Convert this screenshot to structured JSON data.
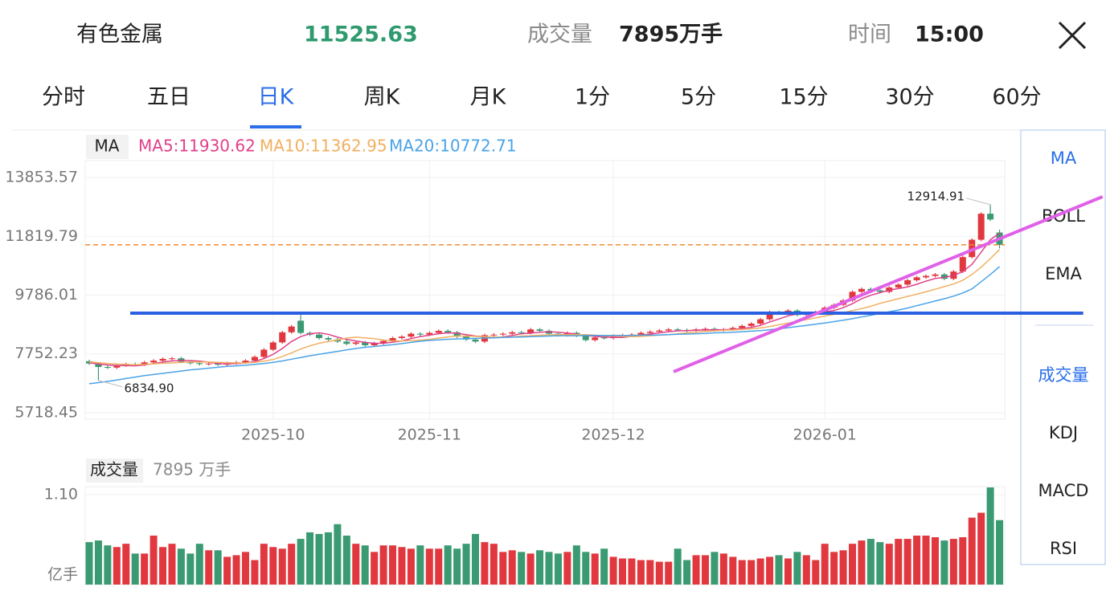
{
  "header": {
    "name": "有色金属",
    "price": "11525.63",
    "volume_label": "成交量",
    "volume": "7895万手",
    "time_label": "时间",
    "time": "15:00"
  },
  "tabs": [
    "分时",
    "五日",
    "日K",
    "周K",
    "月K",
    "1分",
    "5分",
    "15分",
    "30分",
    "60分"
  ],
  "active_tab": 2,
  "indicators": {
    "main": [
      "MA",
      "BOLL",
      "EMA"
    ],
    "sub": [
      "成交量",
      "KDJ",
      "MACD",
      "RSI"
    ]
  },
  "chart_data": {
    "type": "candlestick",
    "indicator": "MA",
    "grid": true,
    "up_color": "#e0383e",
    "down_color": "#3a9a72",
    "ylim": [
      5496.3,
      14436.7
    ],
    "yticks": [
      13853.57,
      11819.79,
      9786.01,
      7752.23,
      5718.45
    ],
    "xticks": [
      {
        "value": 20,
        "label": "2025-10"
      },
      {
        "value": 37,
        "label": "2025-11"
      },
      {
        "value": 57,
        "label": "2025-12"
      },
      {
        "value": 80,
        "label": "2026-01"
      }
    ],
    "high_label": "12914.91",
    "low_label": "6834.90",
    "ohlc": [
      [
        7500,
        7550,
        7370,
        7420
      ],
      [
        7420,
        7470,
        6834.9,
        7300
      ],
      [
        7300,
        7350,
        7230,
        7280
      ],
      [
        7280,
        7400,
        7230,
        7350
      ],
      [
        7350,
        7450,
        7300,
        7400
      ],
      [
        7400,
        7450,
        7330,
        7380
      ],
      [
        7380,
        7510,
        7330,
        7460
      ],
      [
        7460,
        7570,
        7410,
        7520
      ],
      [
        7520,
        7630,
        7470,
        7580
      ],
      [
        7580,
        7650,
        7530,
        7600
      ],
      [
        7600,
        7650,
        7430,
        7480
      ],
      [
        7480,
        7530,
        7380,
        7430
      ],
      [
        7430,
        7480,
        7350,
        7400
      ],
      [
        7400,
        7470,
        7350,
        7420
      ],
      [
        7420,
        7470,
        7330,
        7380
      ],
      [
        7380,
        7480,
        7330,
        7430
      ],
      [
        7430,
        7510,
        7380,
        7460
      ],
      [
        7460,
        7570,
        7410,
        7520
      ],
      [
        7520,
        7700,
        7470,
        7650
      ],
      [
        7650,
        7950,
        7600,
        7900
      ],
      [
        7900,
        8200,
        7850,
        8150
      ],
      [
        8150,
        8550,
        8100,
        8500
      ],
      [
        8500,
        8750,
        8450,
        8700
      ],
      [
        8900,
        9100,
        8430,
        8480
      ],
      [
        8480,
        8530,
        8370,
        8420
      ],
      [
        8420,
        8470,
        8250,
        8300
      ],
      [
        8300,
        8350,
        8200,
        8250
      ],
      [
        8250,
        8300,
        8130,
        8180
      ],
      [
        8180,
        8230,
        8050,
        8100
      ],
      [
        8100,
        8200,
        8050,
        8150
      ],
      [
        8150,
        8200,
        8000,
        8050
      ],
      [
        8050,
        8170,
        8000,
        8120
      ],
      [
        8120,
        8250,
        8070,
        8200
      ],
      [
        8200,
        8350,
        8150,
        8300
      ],
      [
        8300,
        8400,
        8250,
        8350
      ],
      [
        8350,
        8500,
        8300,
        8450
      ],
      [
        8450,
        8500,
        8370,
        8420
      ],
      [
        8420,
        8530,
        8370,
        8480
      ],
      [
        8480,
        8600,
        8430,
        8550
      ],
      [
        8550,
        8600,
        8450,
        8500
      ],
      [
        8500,
        8550,
        8300,
        8350
      ],
      [
        8350,
        8400,
        8200,
        8250
      ],
      [
        8250,
        8300,
        8130,
        8180
      ],
      [
        8180,
        8450,
        8130,
        8400
      ],
      [
        8400,
        8470,
        8350,
        8420
      ],
      [
        8420,
        8500,
        8370,
        8450
      ],
      [
        8450,
        8550,
        8400,
        8500
      ],
      [
        8500,
        8550,
        8430,
        8480
      ],
      [
        8480,
        8650,
        8430,
        8600
      ],
      [
        8600,
        8650,
        8500,
        8550
      ],
      [
        8550,
        8600,
        8400,
        8450
      ],
      [
        8450,
        8500,
        8350,
        8400
      ],
      [
        8400,
        8530,
        8350,
        8480
      ],
      [
        8480,
        8530,
        8330,
        8380
      ],
      [
        8380,
        8430,
        8180,
        8230
      ],
      [
        8230,
        8370,
        8180,
        8320
      ],
      [
        8320,
        8370,
        8250,
        8300
      ],
      [
        8300,
        8430,
        8250,
        8380
      ],
      [
        8380,
        8450,
        8330,
        8400
      ],
      [
        8400,
        8470,
        8350,
        8420
      ],
      [
        8420,
        8530,
        8370,
        8480
      ],
      [
        8480,
        8570,
        8430,
        8520
      ],
      [
        8520,
        8610,
        8470,
        8560
      ],
      [
        8560,
        8650,
        8510,
        8600
      ],
      [
        8600,
        8650,
        8530,
        8580
      ],
      [
        8580,
        8630,
        8500,
        8550
      ],
      [
        8550,
        8650,
        8500,
        8600
      ],
      [
        8600,
        8670,
        8550,
        8620
      ],
      [
        8620,
        8670,
        8530,
        8580
      ],
      [
        8580,
        8650,
        8530,
        8600
      ],
      [
        8600,
        8700,
        8550,
        8650
      ],
      [
        8650,
        8770,
        8600,
        8720
      ],
      [
        8720,
        8850,
        8670,
        8800
      ],
      [
        8800,
        9000,
        8750,
        8950
      ],
      [
        8950,
        9250,
        8900,
        9200
      ],
      [
        9200,
        9250,
        9100,
        9150
      ],
      [
        9150,
        9300,
        9100,
        9250
      ],
      [
        9250,
        9300,
        9050,
        9100
      ],
      [
        9100,
        9200,
        9050,
        9150
      ],
      [
        9150,
        9250,
        9100,
        9200
      ],
      [
        9200,
        9400,
        9150,
        9350
      ],
      [
        9350,
        9500,
        9300,
        9450
      ],
      [
        9450,
        9650,
        9400,
        9600
      ],
      [
        9600,
        9950,
        9550,
        9900
      ],
      [
        9900,
        10050,
        9850,
        10000
      ],
      [
        10000,
        10050,
        9900,
        9950
      ],
      [
        9950,
        10000,
        9850,
        9900
      ],
      [
        9900,
        10100,
        9850,
        10050
      ],
      [
        10050,
        10200,
        10000,
        10150
      ],
      [
        10150,
        10350,
        10100,
        10300
      ],
      [
        10300,
        10450,
        10250,
        10400
      ],
      [
        10400,
        10500,
        10350,
        10450
      ],
      [
        10450,
        10550,
        10400,
        10500
      ],
      [
        10500,
        10550,
        10300,
        10350
      ],
      [
        10350,
        10650,
        10300,
        10600
      ],
      [
        10600,
        11150,
        10550,
        11100
      ],
      [
        11100,
        11750,
        11050,
        11700
      ],
      [
        11700,
        12650,
        11650,
        12600
      ],
      [
        12600,
        12914.91,
        12350,
        12400
      ],
      [
        11950,
        12050,
        11400,
        11525.63
      ]
    ],
    "series": [
      {
        "name": "MA5:11930.62",
        "color": "#e0408a",
        "values": [
          7450,
          7400,
          7370,
          7350,
          7350,
          7340,
          7370,
          7420,
          7470,
          7510,
          7530,
          7520,
          7500,
          7470,
          7420,
          7410,
          7420,
          7440,
          7490,
          7590,
          7740,
          7940,
          8180,
          8350,
          8450,
          8480,
          8430,
          8330,
          8250,
          8200,
          8150,
          8120,
          8120,
          8160,
          8200,
          8280,
          8350,
          8400,
          8450,
          8480,
          8470,
          8420,
          8370,
          8350,
          8320,
          8340,
          8390,
          8450,
          8470,
          8500,
          8520,
          8500,
          8470,
          8440,
          8390,
          8360,
          8340,
          8320,
          8320,
          8360,
          8400,
          8440,
          8480,
          8520,
          8550,
          8560,
          8570,
          8580,
          8590,
          8590,
          8600,
          8630,
          8670,
          8740,
          8860,
          8960,
          9070,
          9130,
          9170,
          9170,
          9210,
          9250,
          9350,
          9490,
          9660,
          9780,
          9870,
          9960,
          10010,
          10070,
          10160,
          10270,
          10360,
          10400,
          10460,
          10600,
          10850,
          11270,
          11700,
          11930.62
        ]
      },
      {
        "name": "MA10:11362.95",
        "color": "#f0b060",
        "values": [
          7480,
          7450,
          7420,
          7400,
          7390,
          7380,
          7390,
          7410,
          7430,
          7440,
          7460,
          7470,
          7470,
          7470,
          7460,
          7450,
          7440,
          7440,
          7460,
          7500,
          7560,
          7660,
          7790,
          7920,
          8030,
          8120,
          8180,
          8230,
          8300,
          8330,
          8310,
          8280,
          8230,
          8200,
          8200,
          8210,
          8230,
          8250,
          8300,
          8340,
          8370,
          8370,
          8360,
          8350,
          8340,
          8330,
          8340,
          8370,
          8380,
          8400,
          8410,
          8420,
          8420,
          8420,
          8420,
          8400,
          8380,
          8370,
          8360,
          8350,
          8360,
          8380,
          8400,
          8420,
          8450,
          8480,
          8500,
          8530,
          8550,
          8570,
          8580,
          8600,
          8620,
          8650,
          8700,
          8760,
          8820,
          8880,
          8940,
          9000,
          9060,
          9120,
          9180,
          9250,
          9320,
          9400,
          9500,
          9580,
          9660,
          9740,
          9820,
          9900,
          9990,
          10080,
          10170,
          10300,
          10500,
          10750,
          11050,
          11362.95
        ]
      },
      {
        "name": "MA20:10772.71",
        "color": "#4aa3e8",
        "values": [
          6720,
          6760,
          6800,
          6850,
          6900,
          6950,
          7000,
          7040,
          7080,
          7120,
          7160,
          7200,
          7230,
          7260,
          7290,
          7320,
          7340,
          7360,
          7390,
          7420,
          7460,
          7510,
          7570,
          7630,
          7690,
          7740,
          7790,
          7840,
          7890,
          7940,
          7980,
          8010,
          8040,
          8070,
          8110,
          8150,
          8190,
          8220,
          8240,
          8260,
          8270,
          8280,
          8290,
          8300,
          8310,
          8320,
          8330,
          8340,
          8350,
          8360,
          8370,
          8380,
          8380,
          8380,
          8390,
          8390,
          8390,
          8390,
          8390,
          8390,
          8400,
          8400,
          8410,
          8420,
          8430,
          8440,
          8450,
          8460,
          8480,
          8490,
          8500,
          8520,
          8540,
          8560,
          8590,
          8620,
          8660,
          8700,
          8740,
          8780,
          8820,
          8870,
          8920,
          8970,
          9030,
          9090,
          9150,
          9210,
          9270,
          9340,
          9420,
          9500,
          9580,
          9660,
          9750,
          9860,
          10000,
          10250,
          10500,
          10772.71
        ]
      }
    ],
    "drawings": [
      {
        "color": "#2a5fe0",
        "points": [
          [
            4.46,
            9162
          ],
          [
            108.1,
            9162
          ]
        ]
      },
      {
        "color": "#e060e8",
        "points": [
          [
            63.55,
            7136
          ],
          [
            110.2,
            13187
          ]
        ]
      }
    ],
    "volume": {
      "title": "成交量",
      "value_label": "7895 万手",
      "unit": "亿手",
      "ylim": [
        0,
        1.2
      ],
      "yticks": [
        {
          "value": 1.1,
          "label": "1.10"
        }
      ],
      "values": [
        0.52,
        0.54,
        0.48,
        0.46,
        0.5,
        0.38,
        0.38,
        0.6,
        0.46,
        0.5,
        0.44,
        0.38,
        0.5,
        0.42,
        0.42,
        0.34,
        0.36,
        0.4,
        0.3,
        0.5,
        0.46,
        0.44,
        0.5,
        0.56,
        0.64,
        0.62,
        0.64,
        0.74,
        0.6,
        0.5,
        0.48,
        0.4,
        0.48,
        0.48,
        0.46,
        0.44,
        0.48,
        0.44,
        0.44,
        0.48,
        0.44,
        0.5,
        0.62,
        0.52,
        0.5,
        0.4,
        0.42,
        0.4,
        0.38,
        0.42,
        0.4,
        0.38,
        0.4,
        0.48,
        0.4,
        0.38,
        0.44,
        0.34,
        0.32,
        0.32,
        0.3,
        0.3,
        0.28,
        0.28,
        0.44,
        0.3,
        0.36,
        0.36,
        0.4,
        0.38,
        0.34,
        0.3,
        0.3,
        0.32,
        0.34,
        0.36,
        0.32,
        0.4,
        0.36,
        0.3,
        0.5,
        0.4,
        0.42,
        0.5,
        0.54,
        0.56,
        0.52,
        0.5,
        0.56,
        0.56,
        0.6,
        0.6,
        0.58,
        0.54,
        0.56,
        0.58,
        0.82,
        0.88,
        1.19,
        0.7895
      ]
    }
  }
}
